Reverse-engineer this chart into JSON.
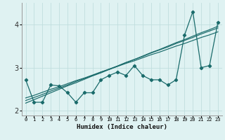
{
  "xlabel": "Humidex (Indice chaleur)",
  "ylabel": "",
  "background_color": "#dff2f2",
  "grid_color": "#c0dede",
  "line_color": "#1a6b6b",
  "x": [
    0,
    1,
    2,
    3,
    4,
    5,
    6,
    7,
    8,
    9,
    10,
    11,
    12,
    13,
    14,
    15,
    16,
    17,
    18,
    19,
    20,
    21,
    22,
    23
  ],
  "y_data": [
    2.72,
    2.2,
    2.2,
    2.6,
    2.58,
    2.42,
    2.2,
    2.42,
    2.42,
    2.72,
    2.82,
    2.9,
    2.82,
    3.05,
    2.82,
    2.72,
    2.72,
    2.6,
    2.72,
    3.75,
    4.3,
    3.0,
    3.05,
    4.05
  ],
  "y_lin1": [
    2.18,
    2.26,
    2.34,
    2.42,
    2.5,
    2.58,
    2.65,
    2.73,
    2.81,
    2.88,
    2.96,
    3.04,
    3.12,
    3.19,
    3.27,
    3.35,
    3.42,
    3.5,
    3.58,
    3.65,
    3.73,
    3.81,
    3.88,
    3.96
  ],
  "y_lin2": [
    2.24,
    2.31,
    2.38,
    2.46,
    2.53,
    2.6,
    2.68,
    2.75,
    2.82,
    2.9,
    2.97,
    3.04,
    3.12,
    3.19,
    3.26,
    3.34,
    3.41,
    3.48,
    3.56,
    3.63,
    3.7,
    3.78,
    3.85,
    3.92
  ],
  "y_lin3": [
    2.3,
    2.36,
    2.43,
    2.5,
    2.56,
    2.63,
    2.7,
    2.76,
    2.83,
    2.9,
    2.96,
    3.03,
    3.1,
    3.16,
    3.23,
    3.3,
    3.36,
    3.43,
    3.5,
    3.56,
    3.63,
    3.7,
    3.76,
    3.83
  ],
  "ylim": [
    1.9,
    4.5
  ],
  "xlim": [
    -0.5,
    23.5
  ],
  "yticks": [
    2,
    3,
    4
  ],
  "xtick_labels": [
    "0",
    "1",
    "2",
    "3",
    "4",
    "5",
    "6",
    "7",
    "8",
    "9",
    "10",
    "11",
    "12",
    "13",
    "14",
    "15",
    "16",
    "17",
    "18",
    "19",
    "20",
    "21",
    "22",
    "23"
  ]
}
